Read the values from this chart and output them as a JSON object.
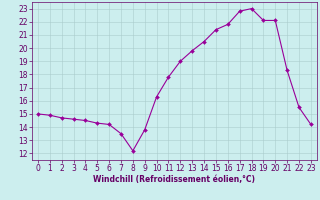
{
  "x": [
    0,
    1,
    2,
    3,
    4,
    5,
    6,
    7,
    8,
    9,
    10,
    11,
    12,
    13,
    14,
    15,
    16,
    17,
    18,
    19,
    20,
    21,
    22,
    23
  ],
  "y": [
    15,
    14.9,
    14.7,
    14.6,
    14.5,
    14.3,
    14.2,
    13.5,
    12.2,
    13.8,
    16.3,
    17.8,
    19.0,
    19.8,
    20.5,
    21.4,
    21.8,
    22.8,
    23.0,
    22.1,
    22.1,
    18.3,
    15.5,
    14.2
  ],
  "line_color": "#990099",
  "marker_color": "#990099",
  "bg_color": "#cceeee",
  "grid_color": "#aacccc",
  "ylabel_ticks": [
    12,
    13,
    14,
    15,
    16,
    17,
    18,
    19,
    20,
    21,
    22,
    23
  ],
  "xlabel_ticks": [
    0,
    1,
    2,
    3,
    4,
    5,
    6,
    7,
    8,
    9,
    10,
    11,
    12,
    13,
    14,
    15,
    16,
    17,
    18,
    19,
    20,
    21,
    22,
    23
  ],
  "xlabel": "Windchill (Refroidissement éolien,°C)",
  "ylim": [
    11.5,
    23.5
  ],
  "xlim": [
    -0.5,
    23.5
  ],
  "label_fontsize": 5.5,
  "tick_fontsize": 5.5,
  "tick_color": "#660066",
  "spine_color": "#660066"
}
